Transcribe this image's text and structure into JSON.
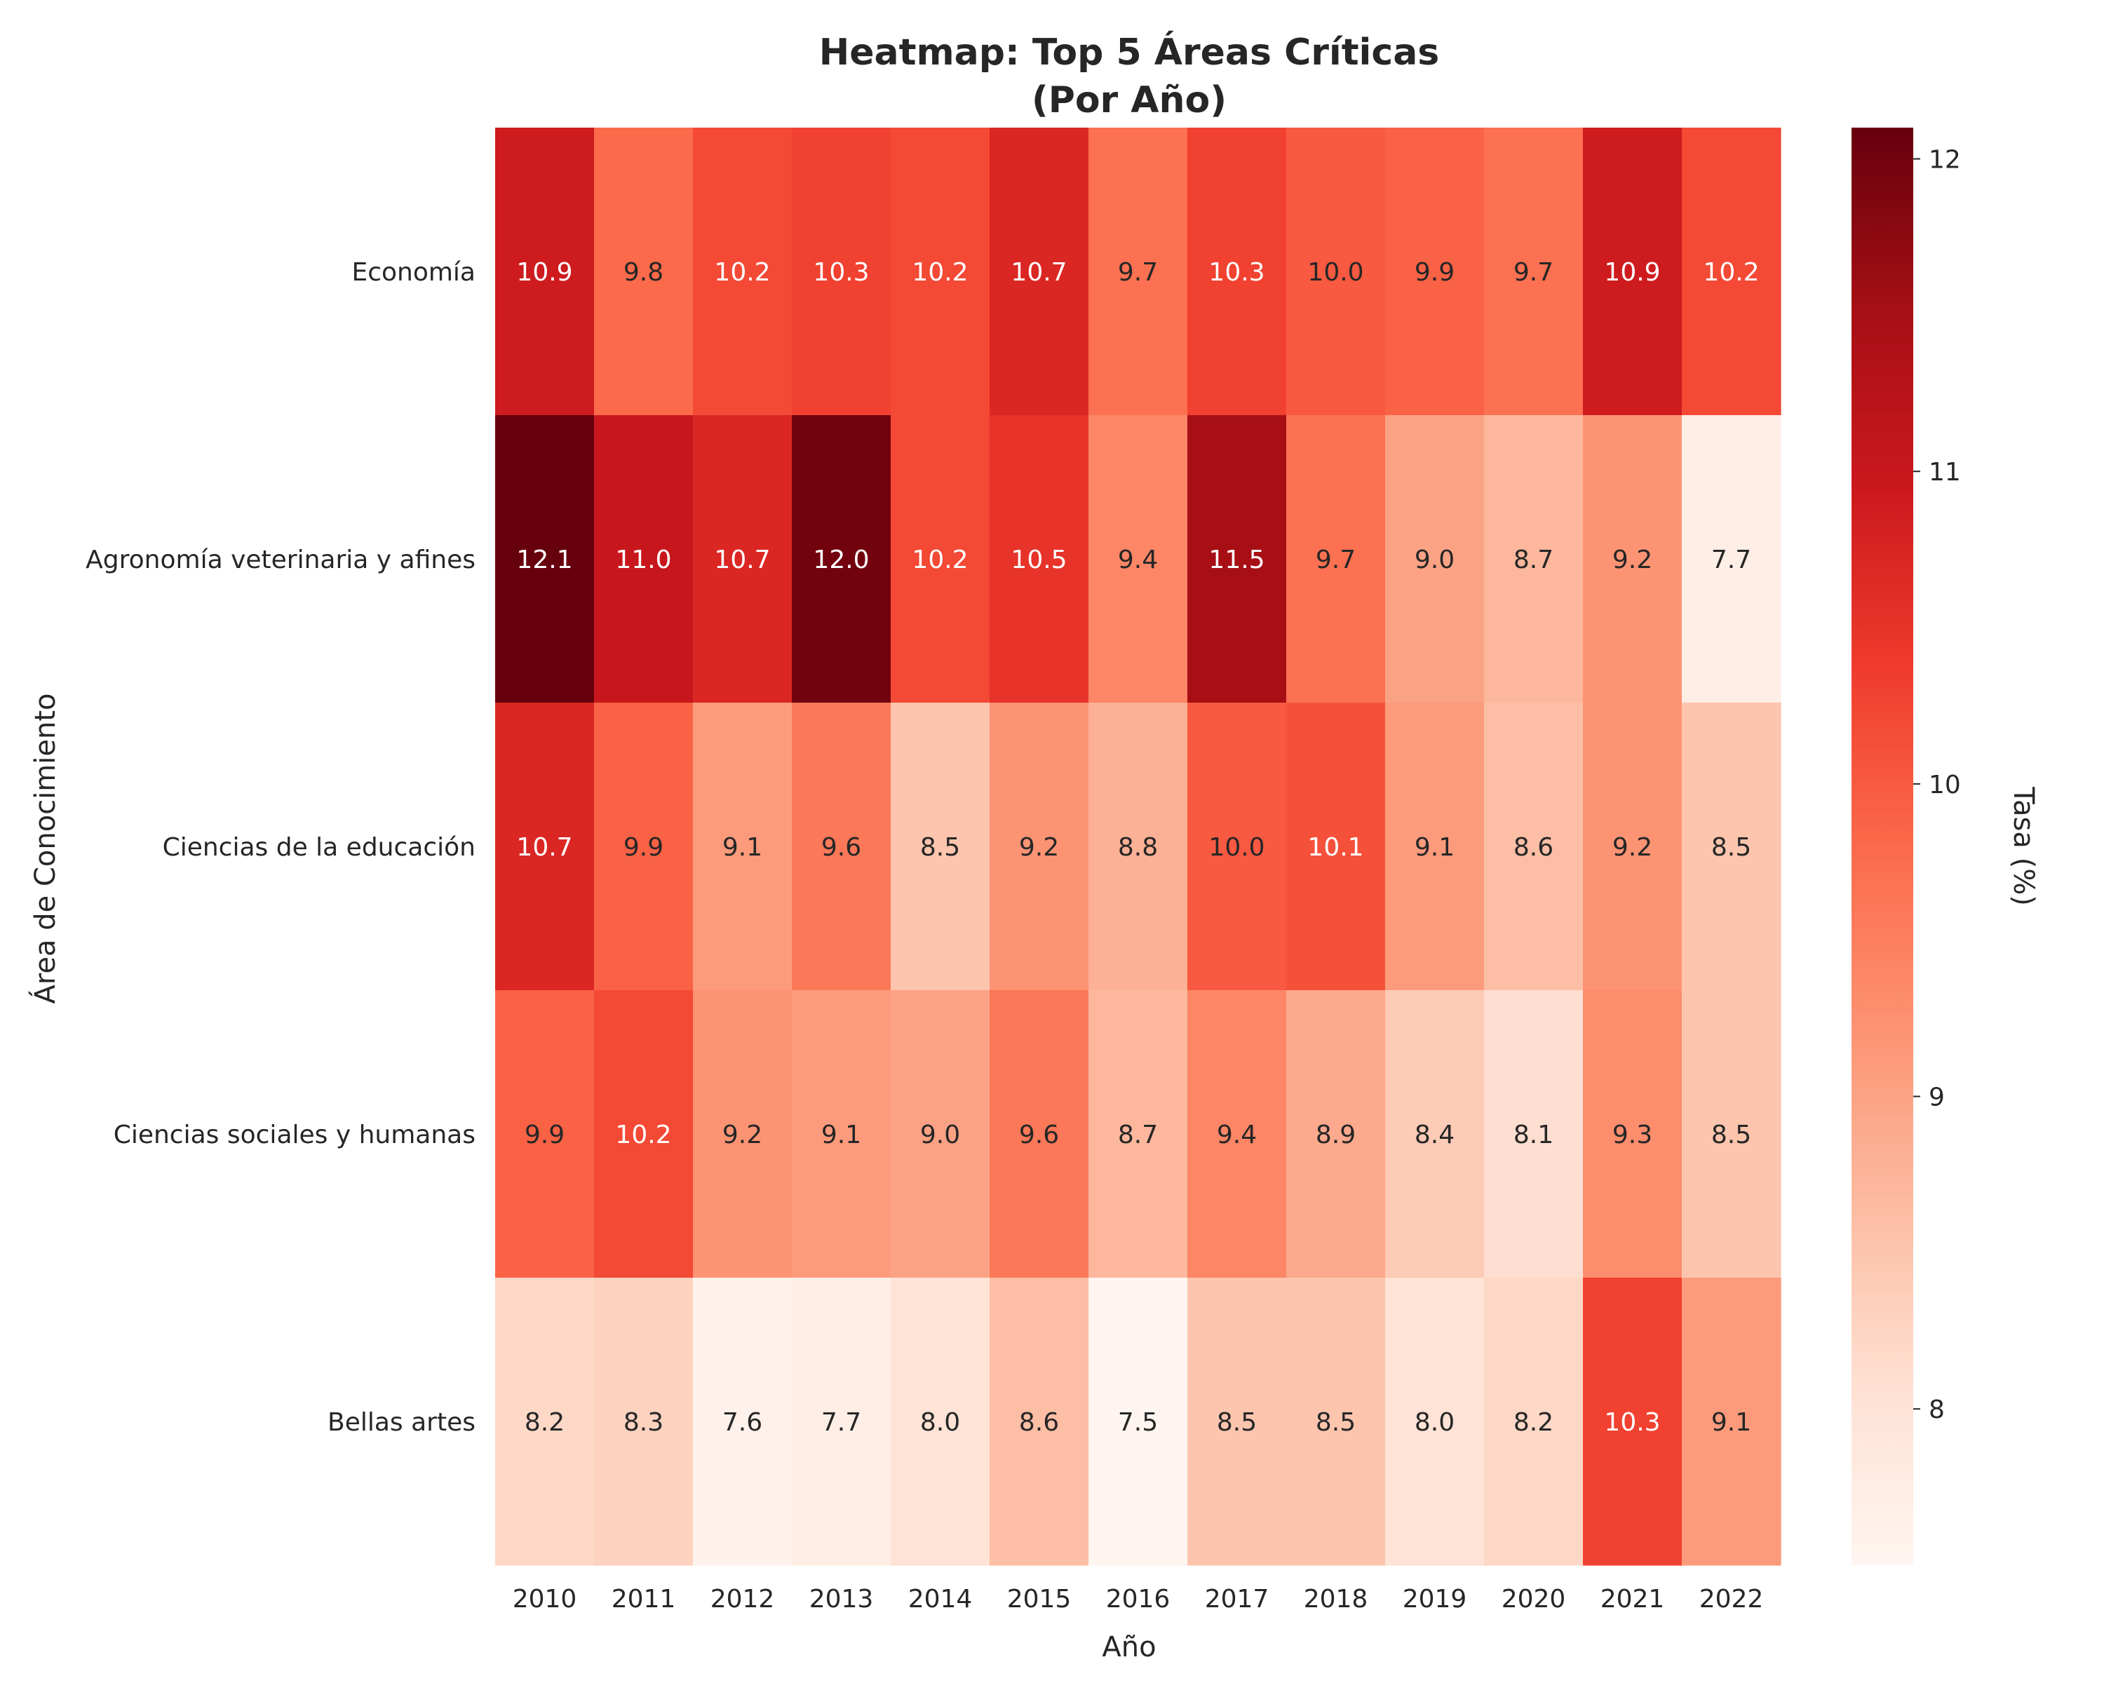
{
  "chart_data": {
    "type": "heatmap",
    "title": "Heatmap: Top 5 Áreas Críticas",
    "subtitle": "(Por Año)",
    "xlabel": "Año",
    "ylabel": "Área de Conocimiento",
    "colorbar_label": "Tasa (%)",
    "colormap": "Reds",
    "color_range": [
      7.5,
      12.1
    ],
    "colorbar_ticks": [
      "8",
      "9",
      "10",
      "11",
      "12"
    ],
    "colorbar_tick_values": [
      8,
      9,
      10,
      11,
      12
    ],
    "x": [
      "2010",
      "2011",
      "2012",
      "2013",
      "2014",
      "2015",
      "2016",
      "2017",
      "2018",
      "2019",
      "2020",
      "2021",
      "2022"
    ],
    "y": [
      "Economía",
      "Agronomía veterinaria y afines",
      "Ciencias de la educación",
      "Ciencias sociales y humanas",
      "Bellas artes"
    ],
    "values": [
      [
        10.9,
        9.8,
        10.2,
        10.3,
        10.2,
        10.7,
        9.7,
        10.3,
        10.0,
        9.9,
        9.7,
        10.9,
        10.2
      ],
      [
        12.1,
        11.0,
        10.7,
        12.0,
        10.2,
        10.5,
        9.4,
        11.5,
        9.7,
        9.0,
        8.7,
        9.2,
        7.7
      ],
      [
        10.7,
        9.9,
        9.1,
        9.6,
        8.5,
        9.2,
        8.8,
        10.0,
        10.1,
        9.1,
        8.6,
        9.2,
        8.5
      ],
      [
        9.9,
        10.2,
        9.2,
        9.1,
        9.0,
        9.6,
        8.7,
        9.4,
        8.9,
        8.4,
        8.1,
        9.3,
        8.5
      ],
      [
        8.2,
        8.3,
        7.6,
        7.7,
        8.0,
        8.6,
        7.5,
        8.5,
        8.5,
        8.0,
        8.2,
        10.3,
        9.1
      ]
    ],
    "labels": [
      [
        "10.9",
        "9.8",
        "10.2",
        "10.3",
        "10.2",
        "10.7",
        "9.7",
        "10.3",
        "10.0",
        "9.9",
        "9.7",
        "10.9",
        "10.2"
      ],
      [
        "12.1",
        "11.0",
        "10.7",
        "12.0",
        "10.2",
        "10.5",
        "9.4",
        "11.5",
        "9.7",
        "9.0",
        "8.7",
        "9.2",
        "7.7"
      ],
      [
        "10.7",
        "9.9",
        "9.1",
        "9.6",
        "8.5",
        "9.2",
        "8.8",
        "10.0",
        "10.1",
        "9.1",
        "8.6",
        "9.2",
        "8.5"
      ],
      [
        "9.9",
        "10.2",
        "9.2",
        "9.1",
        "9.0",
        "9.6",
        "8.7",
        "9.4",
        "8.9",
        "8.4",
        "8.1",
        "9.3",
        "8.5"
      ],
      [
        "8.2",
        "8.3",
        "7.6",
        "7.7",
        "8.0",
        "8.6",
        "7.5",
        "8.5",
        "8.5",
        "8.0",
        "8.2",
        "10.3",
        "9.1"
      ]
    ],
    "grid": false
  }
}
